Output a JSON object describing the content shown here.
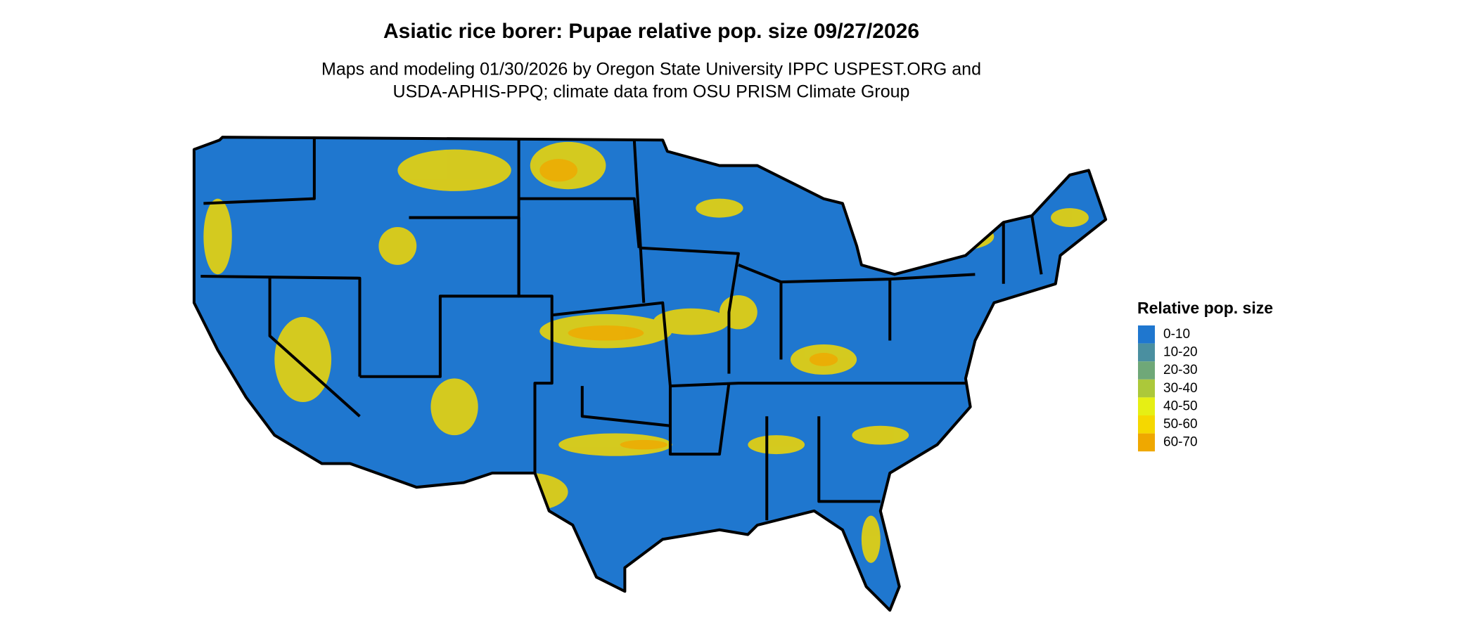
{
  "header": {
    "title": "Asiatic rice borer: Pupae relative pop. size 09/27/2026",
    "subtitle": [
      "Maps and modeling 01/30/2026 by Oregon State University IPPC USPEST.ORG and",
      "USDA-APHIS-PPQ; climate data from OSU PRISM Climate Group"
    ]
  },
  "legend": {
    "title": "Relative pop. size",
    "items": [
      {
        "label": "0-10",
        "color": "#1f77cf"
      },
      {
        "label": "10-20",
        "color": "#4a8fa0"
      },
      {
        "label": "20-30",
        "color": "#6fa878"
      },
      {
        "label": "30-40",
        "color": "#acc83a"
      },
      {
        "label": "40-50",
        "color": "#e6ef14"
      },
      {
        "label": "50-60",
        "color": "#f5d800"
      },
      {
        "label": "60-70",
        "color": "#efa800"
      }
    ]
  }
}
